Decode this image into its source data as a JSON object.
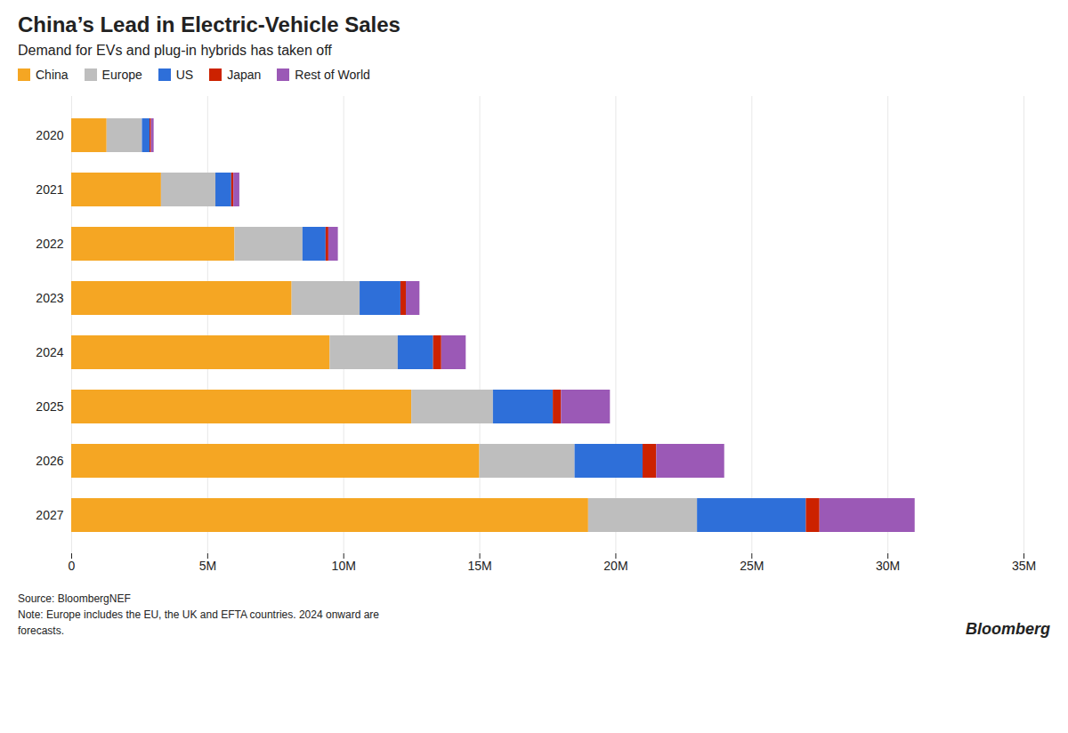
{
  "chart_data": {
    "type": "bar",
    "orientation": "horizontal",
    "stacked": true,
    "title": "China’s Lead in Electric-Vehicle Sales",
    "subtitle": "Demand for EVs and plug-in hybrids has taken off",
    "annotations": [
      "Source: BloombergNEF\nNote: Europe includes the EU, the UK and EFTA countries. 2024 onward are\nforecasts.",
      "Bloomberg"
    ],
    "categories": [
      "2020",
      "2021",
      "2022",
      "2023",
      "2024",
      "2025",
      "2026",
      "2027"
    ],
    "series": [
      {
        "name": "China",
        "color": "#F5A623",
        "values": [
          1.3,
          3.3,
          6.0,
          8.1,
          9.5,
          12.5,
          15.0,
          19.0
        ]
      },
      {
        "name": "Europe",
        "color": "#BEBEBE",
        "values": [
          1.3,
          2.0,
          2.5,
          2.5,
          2.5,
          3.0,
          3.5,
          4.0
        ]
      },
      {
        "name": "US",
        "color": "#2E6FD9",
        "values": [
          0.28,
          0.58,
          0.85,
          1.5,
          1.3,
          2.2,
          2.5,
          4.0
        ]
      },
      {
        "name": "Japan",
        "color": "#CC2200",
        "values": [
          0.05,
          0.08,
          0.1,
          0.2,
          0.3,
          0.3,
          0.5,
          0.5
        ]
      },
      {
        "name": "Rest of World",
        "color": "#9B59B6",
        "values": [
          0.1,
          0.22,
          0.35,
          0.5,
          0.9,
          1.8,
          2.5,
          3.5
        ]
      }
    ],
    "xlim": [
      0,
      35
    ],
    "xticks": [
      0,
      {
        "value": 5,
        "label": "5M"
      },
      {
        "value": 10,
        "label": "10M"
      },
      {
        "value": 15,
        "label": "15M"
      },
      {
        "value": 20,
        "label": "20M"
      },
      {
        "value": 25,
        "label": "25M"
      },
      {
        "value": 30,
        "label": "30M"
      },
      {
        "value": 35,
        "label": "35M"
      }
    ],
    "grid": true,
    "legend": "top"
  }
}
